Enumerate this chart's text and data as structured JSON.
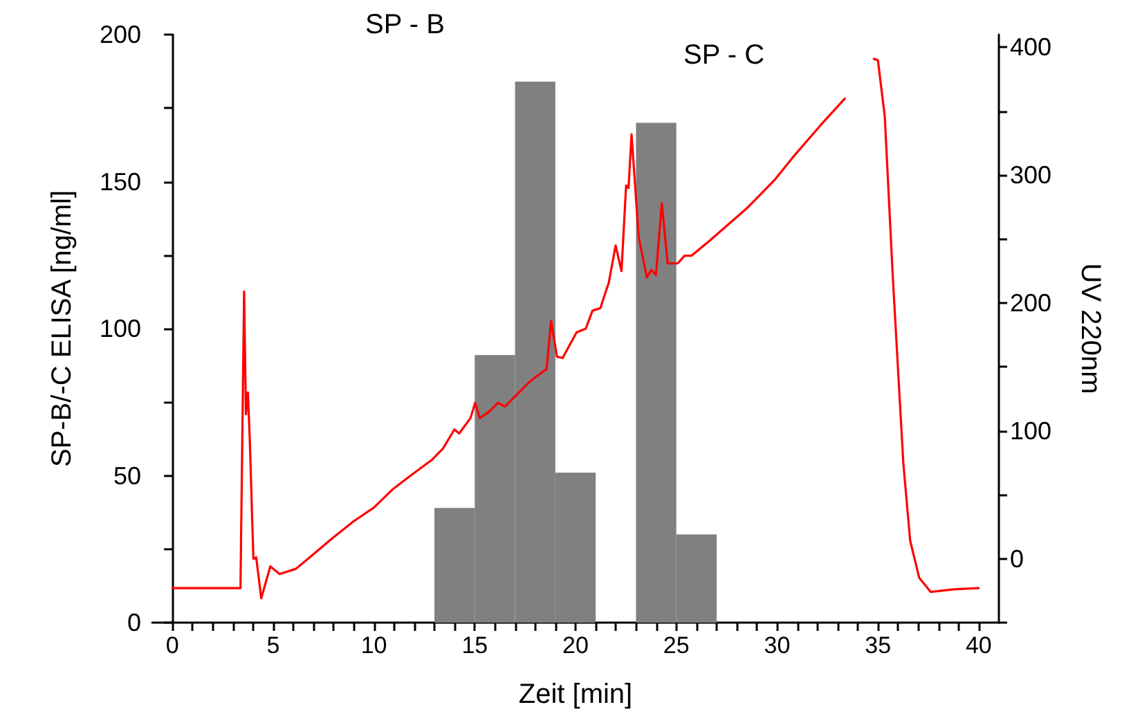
{
  "chart_data": {
    "type": "histogram",
    "xlabel": "Zeit [min]",
    "ylabel": "SP-B/-C ELISA [ng/ml]",
    "y2label": "UV 220nm",
    "annotations": [
      "SP - B",
      "SP - C"
    ],
    "xlim": [
      -1,
      41
    ],
    "xticks": [
      0,
      {
        "value": 1,
        "label": null
      },
      {
        "value": 2,
        "label": null
      },
      {
        "value": 3,
        "label": null
      },
      {
        "value": 4,
        "label": null
      },
      5,
      {
        "value": 6,
        "label": null
      },
      {
        "value": 7,
        "label": null
      },
      {
        "value": 8,
        "label": null
      },
      {
        "value": 9,
        "label": null
      },
      10,
      {
        "value": 11,
        "label": null
      },
      {
        "value": 12,
        "label": null
      },
      {
        "value": 13,
        "label": null
      },
      {
        "value": 14,
        "label": null
      },
      15,
      {
        "value": 16,
        "label": null
      },
      {
        "value": 17,
        "label": null
      },
      {
        "value": 18,
        "label": null
      },
      {
        "value": 19,
        "label": null
      },
      20,
      {
        "value": 21,
        "label": null
      },
      {
        "value": 22,
        "label": null
      },
      {
        "value": 23,
        "label": null
      },
      {
        "value": 24,
        "label": null
      },
      25,
      {
        "value": 26,
        "label": null
      },
      {
        "value": 27,
        "label": null
      },
      {
        "value": 28,
        "label": null
      },
      {
        "value": 29,
        "label": null
      },
      30,
      {
        "value": 31,
        "label": null
      },
      {
        "value": 32,
        "label": null
      },
      {
        "value": 33,
        "label": null
      },
      {
        "value": 34,
        "label": null
      },
      35,
      {
        "value": 36,
        "label": null
      },
      {
        "value": 37,
        "label": null
      },
      {
        "value": 38,
        "label": null
      },
      {
        "value": 39,
        "label": null
      },
      40
    ],
    "ylim": [
      0,
      200
    ],
    "yticks": [
      0,
      {
        "value": 25,
        "label": null
      },
      50,
      {
        "value": 75,
        "label": null
      },
      100,
      {
        "value": 125,
        "label": null
      },
      150,
      {
        "value": 175,
        "label": null
      },
      200
    ],
    "y2lim": [
      -50,
      410
    ],
    "y2ticks": [
      {
        "value": -50,
        "label": null
      },
      0,
      {
        "value": 50,
        "label": null
      },
      100,
      {
        "value": 150,
        "label": null
      },
      200,
      {
        "value": 250,
        "label": null
      },
      300,
      {
        "value": 350,
        "label": null
      },
      400
    ],
    "grid": false,
    "series": [
      {
        "color": "#808080",
        "bins": [
          13,
          15,
          17,
          19,
          21,
          23,
          25,
          27
        ],
        "values": [
          39,
          91,
          184,
          51,
          0,
          170,
          30
        ]
      },
      {
        "type": "line",
        "axis": "y2",
        "color": "#ff0000",
        "line_style": "solid",
        "x": [
          0,
          3.38,
          3.56,
          3.65,
          3.75,
          3.84,
          4.02,
          4.16,
          4.41,
          4.86,
          5.32,
          6.12,
          6.81,
          7.94,
          8.97,
          10.0,
          10.91,
          11.82,
          12.85,
          13.42,
          13.99,
          14.23,
          14.79,
          15.02,
          15.25,
          15.71,
          16.16,
          16.5,
          17.76,
          18.44,
          18.56,
          18.79,
          19.08,
          19.36,
          20.05,
          20.51,
          20.84,
          21.23,
          21.65,
          21.99,
          22.28,
          22.51,
          22.63,
          22.78,
          23.13,
          23.54,
          23.76,
          23.99,
          24.28,
          24.57,
          25.07,
          25.41,
          25.75,
          26.67,
          28.49,
          29.86,
          30.78,
          32.15,
          33.36,
          34.1,
          34.8,
          35.0,
          35.34,
          35.74,
          36.26,
          36.6,
          37.05,
          37.62,
          38.76,
          40.0
        ],
        "values": [
          -23,
          -23,
          209,
          113,
          130,
          94,
          0,
          1,
          -31,
          -6,
          -12,
          -8,
          1,
          16,
          29,
          40,
          54,
          65,
          77,
          86,
          101,
          98,
          110,
          122,
          110,
          115,
          122,
          119,
          139,
          147,
          148,
          186,
          158,
          157,
          177,
          180,
          194,
          196,
          216,
          245,
          225,
          292,
          290,
          332,
          252,
          220,
          226,
          222,
          278,
          231,
          231,
          237,
          237,
          249,
          274,
          296,
          314,
          339,
          360,
          null,
          391,
          390,
          346,
          220,
          75,
          14,
          -15,
          -26,
          -24,
          -23
        ]
      }
    ]
  }
}
